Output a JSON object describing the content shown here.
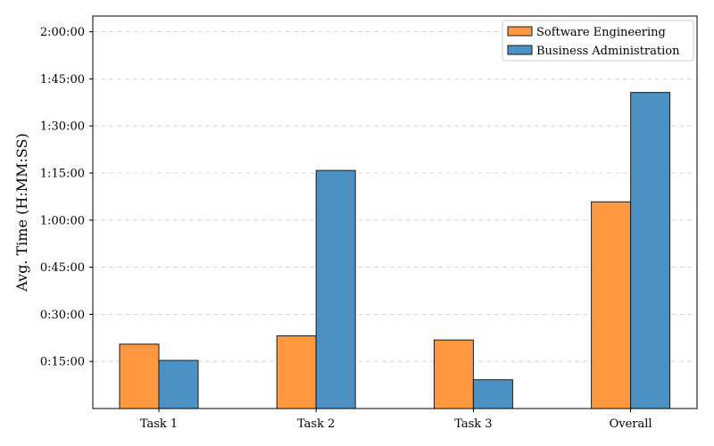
{
  "chart_data": {
    "type": "bar",
    "title": "",
    "xlabel": "",
    "ylabel": "Avg. Time (H:MM:SS)",
    "categories": [
      "Task 1",
      "Task 2",
      "Task 3",
      "Overall"
    ],
    "series": [
      {
        "name": "Software Engineering",
        "color": "#ff9841",
        "values_seconds": [
          1230,
          1390,
          1310,
          3950
        ],
        "values": [
          "0:20:30",
          "0:23:10",
          "0:21:50",
          "1:05:50"
        ]
      },
      {
        "name": "Business Administration",
        "color": "#4b91c3",
        "values_seconds": [
          920,
          4550,
          550,
          6040
        ],
        "values": [
          "0:15:20",
          "1:15:50",
          "0:09:10",
          "1:40:40"
        ]
      }
    ],
    "ylim_seconds": [
      0,
      7500
    ],
    "yticks_seconds": [
      900,
      1800,
      2700,
      3600,
      4500,
      5400,
      6300,
      7200
    ],
    "ytick_labels": [
      "0:15:00",
      "0:30:00",
      "0:45:00",
      "1:00:00",
      "1:15:00",
      "1:30:00",
      "1:45:00",
      "2:00:00"
    ],
    "grid": "y-dashed",
    "legend_position": "top-right"
  }
}
